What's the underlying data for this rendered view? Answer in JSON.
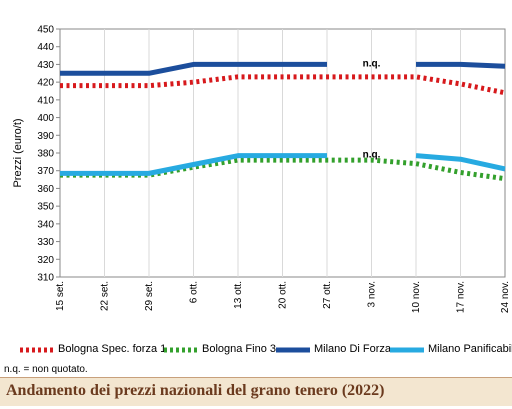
{
  "chart_data": {
    "type": "line",
    "title": "Andamento dei prezzi nazionali del grano tenero (2022)",
    "ylabel": "Prezzi (euro/t)",
    "xlabel": "",
    "ylim": [
      310,
      450
    ],
    "yticks": [
      310,
      320,
      330,
      340,
      350,
      360,
      370,
      380,
      390,
      400,
      410,
      420,
      430,
      440,
      450
    ],
    "categories": [
      "15 set.",
      "22 set.",
      "29 set.",
      "6 ott.",
      "13 ott.",
      "20 ott.",
      "27 ott.",
      "3 nov.",
      "10 nov.",
      "17 nov.",
      "24 nov."
    ],
    "grid": "vertical",
    "legend_position": "bottom",
    "series": [
      {
        "name": "Bologna Spec. forza 1",
        "style": "dotted",
        "color": "#d7191c",
        "values": [
          418,
          418,
          418,
          420,
          423,
          423,
          423,
          423,
          423,
          419,
          414
        ]
      },
      {
        "name": "Bologna Fino 3",
        "style": "dotted",
        "color": "#33a02c",
        "values": [
          367.5,
          367.5,
          367.5,
          372,
          376,
          376,
          376,
          376,
          374,
          369,
          365.5
        ]
      },
      {
        "name": "Milano Di Forza",
        "style": "solid",
        "color": "#1c4e9c",
        "values": [
          425,
          425,
          425,
          430,
          430,
          430,
          430,
          null,
          430,
          430,
          429
        ]
      },
      {
        "name": "Milano Panificabile",
        "style": "solid",
        "color": "#27aae1",
        "values": [
          368.5,
          368.5,
          368.5,
          373.5,
          378.5,
          378.5,
          378.5,
          null,
          378.5,
          376.5,
          371
        ]
      }
    ],
    "annotations": [
      {
        "text": "n.q.",
        "x": "3 nov.",
        "y": 430
      },
      {
        "text": "n.q.",
        "x": "3 nov.",
        "y": 378.5
      }
    ]
  },
  "note": "n.q. = non quotato."
}
